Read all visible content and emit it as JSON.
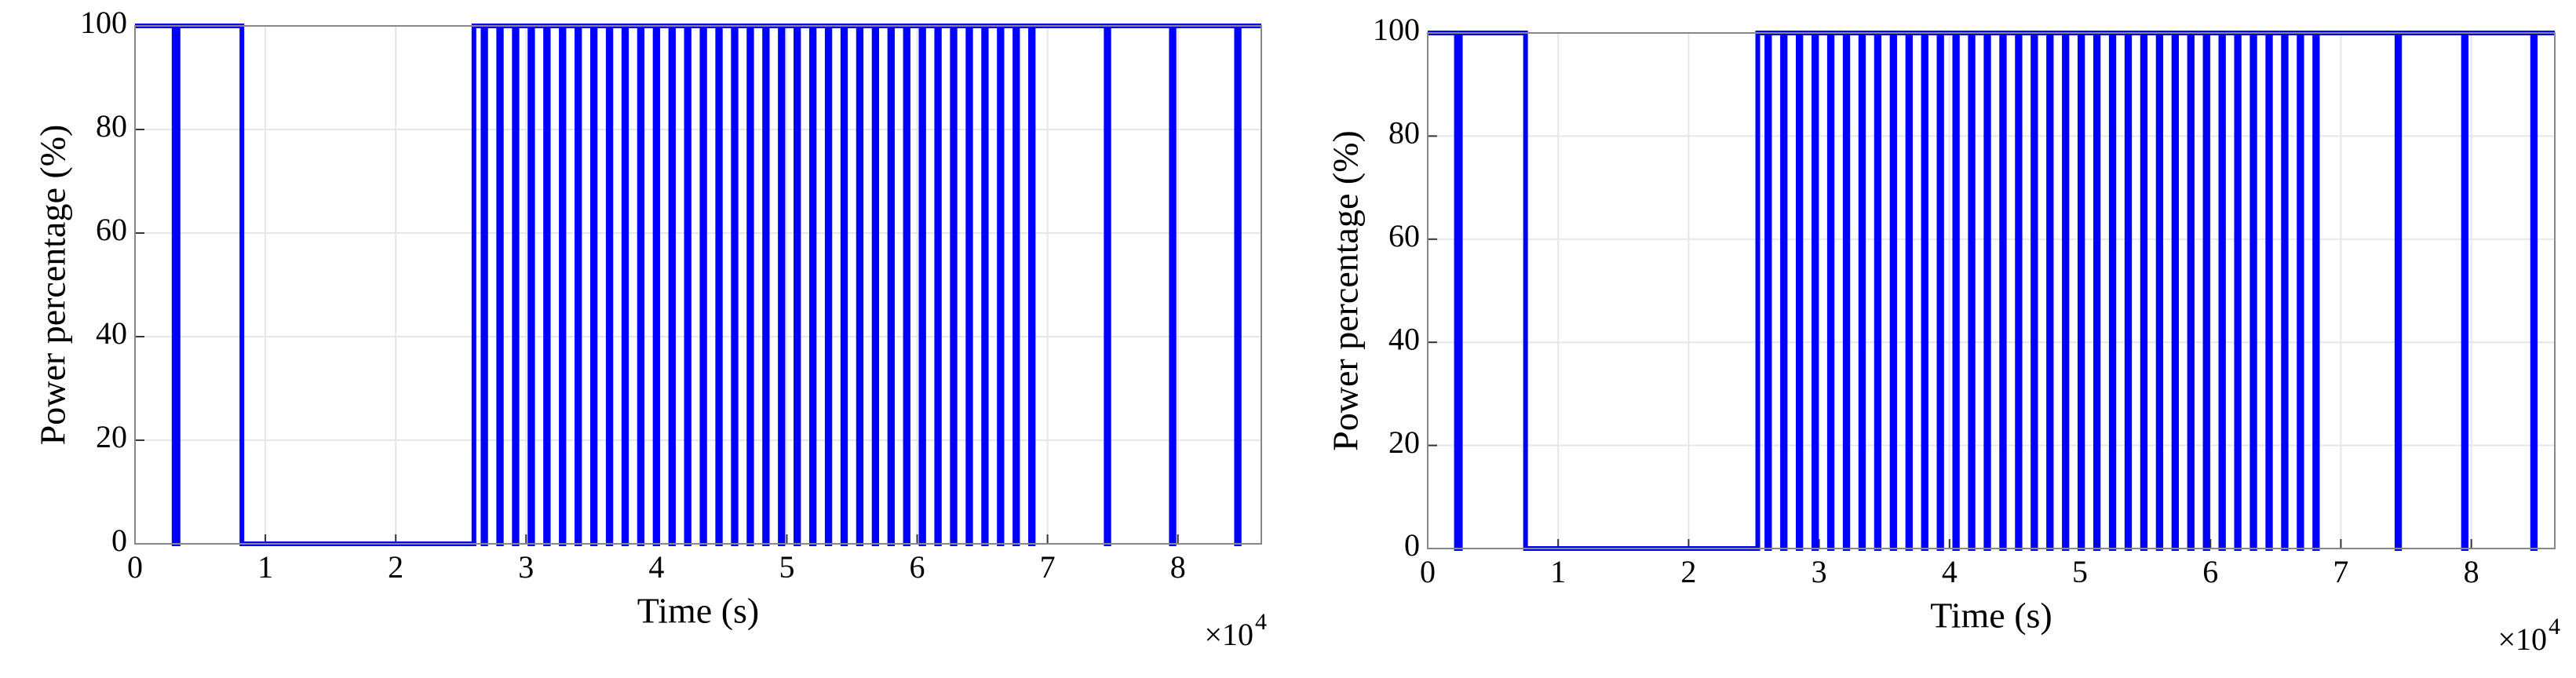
{
  "chart_data": [
    {
      "type": "line",
      "step": "post",
      "color": "#0000ff",
      "grid": true,
      "x_label": "Time (s)",
      "y_label": "Power percentage (%)",
      "x_multiplier": {
        "base": "×10",
        "exponent": "4"
      },
      "xlim": [
        0,
        86400
      ],
      "ylim": [
        0,
        100
      ],
      "xticks": [
        {
          "value": 0,
          "label": "0"
        },
        {
          "value": 10000,
          "label": "1"
        },
        {
          "value": 20000,
          "label": "2"
        },
        {
          "value": 30000,
          "label": "3"
        },
        {
          "value": 40000,
          "label": "4"
        },
        {
          "value": 50000,
          "label": "5"
        },
        {
          "value": 60000,
          "label": "6"
        },
        {
          "value": 70000,
          "label": "7"
        },
        {
          "value": 80000,
          "label": "8"
        }
      ],
      "yticks": [
        0,
        20,
        40,
        60,
        80,
        100
      ],
      "x": [
        0,
        3000,
        3300,
        8200,
        26000,
        26700,
        26900,
        27900,
        28100,
        29100,
        29300,
        30300,
        30500,
        31500,
        31700,
        32700,
        32900,
        33900,
        34100,
        35100,
        35300,
        36300,
        36500,
        37500,
        37700,
        38700,
        38900,
        39900,
        40100,
        41100,
        41300,
        42300,
        42500,
        43500,
        43700,
        44700,
        44900,
        45900,
        46100,
        47100,
        47300,
        48300,
        48500,
        49500,
        49700,
        50700,
        50900,
        51900,
        52100,
        53100,
        53300,
        54300,
        54500,
        55500,
        55700,
        56700,
        56900,
        57900,
        58100,
        59100,
        59300,
        60300,
        60500,
        61500,
        61700,
        62700,
        62900,
        63900,
        64100,
        65100,
        65300,
        66300,
        66500,
        67500,
        67700,
        68700,
        68900,
        74500,
        74700,
        79500,
        79700,
        84500,
        84700,
        86400
      ],
      "values": [
        100,
        0,
        100,
        0,
        100,
        0,
        100,
        0,
        100,
        0,
        100,
        0,
        100,
        0,
        100,
        0,
        100,
        0,
        100,
        0,
        100,
        0,
        100,
        0,
        100,
        0,
        100,
        0,
        100,
        0,
        100,
        0,
        100,
        0,
        100,
        0,
        100,
        0,
        100,
        0,
        100,
        0,
        100,
        0,
        100,
        0,
        100,
        0,
        100,
        0,
        100,
        0,
        100,
        0,
        100,
        0,
        100,
        0,
        100,
        0,
        100,
        0,
        100,
        0,
        100,
        0,
        100,
        0,
        100,
        0,
        100,
        0,
        100,
        0,
        100,
        0,
        100,
        0,
        100,
        0,
        100,
        0,
        100,
        100
      ]
    },
    {
      "type": "line",
      "step": "post",
      "color": "#0000ff",
      "grid": true,
      "x_label": "Time (s)",
      "y_label": "Power percentage (%)",
      "x_multiplier": {
        "base": "×10",
        "exponent": "4"
      },
      "xlim": [
        0,
        86400
      ],
      "ylim": [
        0,
        100
      ],
      "xticks": [
        {
          "value": 0,
          "label": "0"
        },
        {
          "value": 10000,
          "label": "1"
        },
        {
          "value": 20000,
          "label": "2"
        },
        {
          "value": 30000,
          "label": "3"
        },
        {
          "value": 40000,
          "label": "4"
        },
        {
          "value": 50000,
          "label": "5"
        },
        {
          "value": 60000,
          "label": "6"
        },
        {
          "value": 70000,
          "label": "7"
        },
        {
          "value": 80000,
          "label": "8"
        }
      ],
      "yticks": [
        0,
        20,
        40,
        60,
        80,
        100
      ],
      "x": [
        0,
        2200,
        2500,
        7500,
        25300,
        26000,
        26200,
        27200,
        27400,
        28400,
        28600,
        29600,
        29800,
        30800,
        31000,
        32000,
        32200,
        33200,
        33400,
        34400,
        34600,
        35600,
        35800,
        36800,
        37000,
        38000,
        38200,
        39200,
        39400,
        40400,
        40600,
        41600,
        41800,
        42800,
        43000,
        44000,
        44200,
        45200,
        45400,
        46400,
        46600,
        47600,
        47800,
        48800,
        49000,
        50000,
        50200,
        51200,
        51400,
        52400,
        52600,
        53600,
        53800,
        54800,
        55000,
        56000,
        56200,
        57200,
        57400,
        58400,
        58600,
        59600,
        59800,
        60800,
        61000,
        62000,
        62200,
        63200,
        63400,
        64400,
        64600,
        65600,
        65800,
        66800,
        67000,
        68000,
        68200,
        74300,
        74500,
        79400,
        79600,
        84700,
        84900,
        86400
      ],
      "values": [
        100,
        0,
        100,
        0,
        100,
        0,
        100,
        0,
        100,
        0,
        100,
        0,
        100,
        0,
        100,
        0,
        100,
        0,
        100,
        0,
        100,
        0,
        100,
        0,
        100,
        0,
        100,
        0,
        100,
        0,
        100,
        0,
        100,
        0,
        100,
        0,
        100,
        0,
        100,
        0,
        100,
        0,
        100,
        0,
        100,
        0,
        100,
        0,
        100,
        0,
        100,
        0,
        100,
        0,
        100,
        0,
        100,
        0,
        100,
        0,
        100,
        0,
        100,
        0,
        100,
        0,
        100,
        0,
        100,
        0,
        100,
        0,
        100,
        0,
        100,
        0,
        100,
        0,
        100,
        0,
        100,
        0,
        100,
        100
      ]
    }
  ]
}
